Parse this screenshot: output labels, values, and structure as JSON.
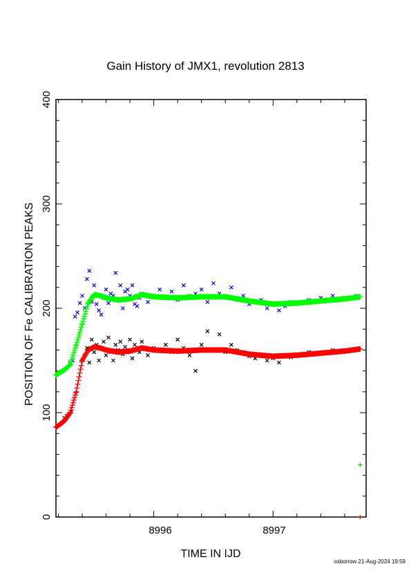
{
  "chart_data": {
    "type": "scatter",
    "title": "Gain History of JMX1, revolution 2813",
    "xlabel": "TIME IN IJD",
    "ylabel": "POSITION OF Fe CALIBRATION PEAKS",
    "xlim": [
      8995.18,
      8997.78
    ],
    "ylim": [
      0,
      400
    ],
    "x_ticks": [
      8996,
      8997
    ],
    "y_ticks": [
      0,
      100,
      200,
      300,
      400
    ],
    "grid": false,
    "legend": "none",
    "series": [
      {
        "marker": "x",
        "color": "#0000ff",
        "x": [
          8995.3,
          8995.32,
          8995.34,
          8995.36,
          8995.38,
          8995.4,
          8995.42,
          8995.44,
          8995.46,
          8995.48,
          8995.5,
          8995.52,
          8995.54,
          8995.56,
          8995.58,
          8995.6,
          8995.62,
          8995.64,
          8995.66,
          8995.68,
          8995.7,
          8995.72,
          8995.74,
          8995.76,
          8995.78,
          8995.8,
          8995.82,
          8995.84,
          8995.86,
          8995.88,
          8995.9,
          8995.95,
          8996.0,
          8996.05,
          8996.1,
          8996.15,
          8996.2,
          8996.25,
          8996.3,
          8996.35,
          8996.4,
          8996.45,
          8996.5,
          8996.55,
          8996.6,
          8996.65,
          8996.7,
          8996.75,
          8996.8,
          8996.85,
          8996.9,
          8996.95,
          8997.0,
          8997.05,
          8997.1,
          8997.15,
          8997.2,
          8997.3,
          8997.4,
          8997.5,
          8997.6,
          8997.7
        ],
        "y": [
          148,
          150,
          192,
          196,
          205,
          212,
          200,
          228,
          236,
          206,
          222,
          204,
          198,
          194,
          210,
          218,
          205,
          214,
          212,
          234,
          208,
          222,
          200,
          216,
          218,
          212,
          222,
          204,
          202,
          210,
          214,
          206,
          212,
          218,
          210,
          216,
          208,
          222,
          212,
          214,
          218,
          206,
          224,
          214,
          210,
          220,
          208,
          212,
          204,
          206,
          208,
          200,
          204,
          198,
          202,
          206,
          204,
          208,
          210,
          212,
          210,
          212
        ]
      },
      {
        "marker": "+",
        "color": "#00ff00",
        "x": [
          8995.18,
          8995.25,
          8995.3,
          8995.35,
          8995.4,
          8995.45,
          8995.5,
          8995.55,
          8995.6,
          8995.7,
          8995.8,
          8995.9,
          8996.0,
          8996.2,
          8996.4,
          8996.6,
          8996.8,
          8997.0,
          8997.2,
          8997.4,
          8997.6,
          8997.73
        ],
        "y": [
          136,
          141,
          146,
          165,
          185,
          205,
          213,
          212,
          210,
          208,
          209,
          213,
          211,
          210,
          211,
          211,
          207,
          204,
          205,
          207,
          209,
          211
        ]
      },
      {
        "marker": "x",
        "color": "#000000",
        "x": [
          8995.25,
          8995.27,
          8995.29,
          8995.31,
          8995.4,
          8995.42,
          8995.44,
          8995.46,
          8995.48,
          8995.5,
          8995.52,
          8995.54,
          8995.56,
          8995.58,
          8995.6,
          8995.62,
          8995.64,
          8995.66,
          8995.68,
          8995.7,
          8995.72,
          8995.74,
          8995.76,
          8995.78,
          8995.8,
          8995.82,
          8995.84,
          8995.86,
          8995.88,
          8995.9,
          8995.95,
          8996.0,
          8996.05,
          8996.1,
          8996.15,
          8996.2,
          8996.25,
          8996.3,
          8996.35,
          8996.4,
          8996.45,
          8996.5,
          8996.55,
          8996.6,
          8996.65,
          8996.7,
          8996.75,
          8996.8,
          8996.85,
          8996.9,
          8996.95,
          8997.0,
          8997.05,
          8997.1,
          8997.15,
          8997.2,
          8997.3,
          8997.4,
          8997.5,
          8997.6,
          8997.7
        ],
        "y": [
          95,
          97,
          99,
          101,
          150,
          155,
          162,
          148,
          170,
          158,
          165,
          150,
          162,
          168,
          155,
          172,
          158,
          150,
          165,
          160,
          168,
          156,
          163,
          158,
          170,
          152,
          165,
          160,
          158,
          168,
          155,
          162,
          160,
          165,
          158,
          170,
          162,
          155,
          140,
          165,
          178,
          160,
          175,
          158,
          165,
          160,
          158,
          154,
          152,
          155,
          150,
          152,
          148,
          155,
          153,
          156,
          158,
          157,
          160,
          159,
          161
        ]
      },
      {
        "marker": "+",
        "color": "#ff0000",
        "x": [
          8995.18,
          8995.25,
          8995.3,
          8995.35,
          8995.4,
          8995.45,
          8995.5,
          8995.55,
          8995.6,
          8995.7,
          8995.8,
          8995.9,
          8996.0,
          8996.2,
          8996.4,
          8996.6,
          8996.8,
          8997.0,
          8997.2,
          8997.4,
          8997.6,
          8997.73
        ],
        "y": [
          86,
          92,
          100,
          120,
          150,
          160,
          163,
          162,
          160,
          158,
          159,
          162,
          160,
          159,
          160,
          160,
          156,
          154,
          155,
          157,
          159,
          161
        ]
      }
    ],
    "outliers": [
      {
        "marker": "+",
        "color": "#00cc00",
        "x": 8997.73,
        "y": 50
      },
      {
        "marker": "+",
        "color": "#ff0000",
        "x": 8997.73,
        "y": 0
      }
    ]
  },
  "footer": "oxborrow 21-Aug-2024 19:59"
}
